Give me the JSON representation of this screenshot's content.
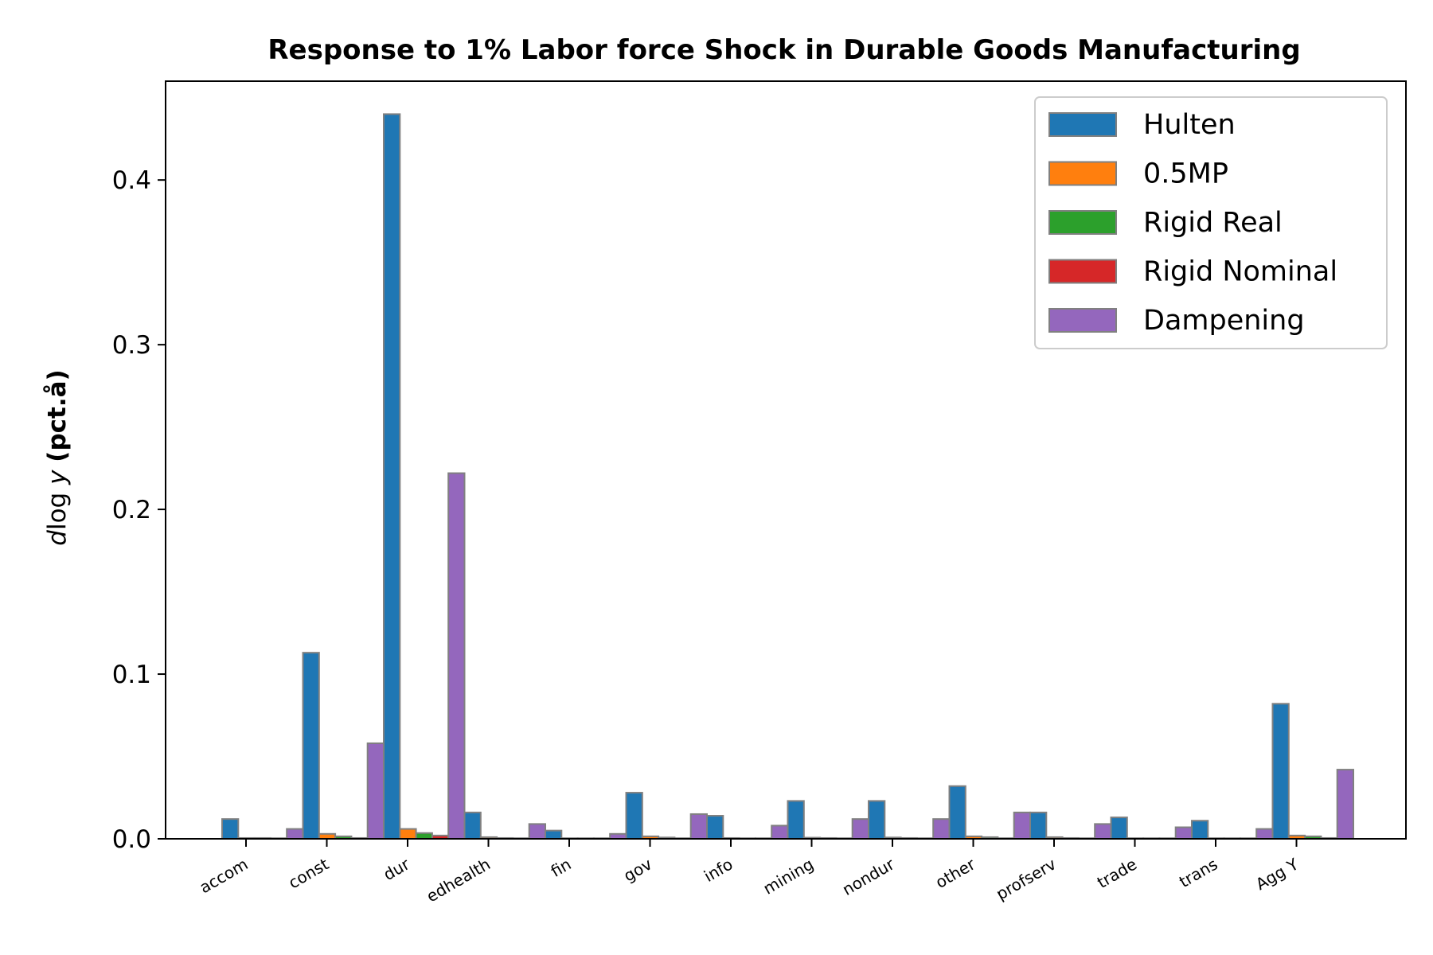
{
  "chart_data": {
    "type": "bar",
    "title": "Response to 1% Labor force Shock in Durable Goods Manufacturing",
    "ylabel_math": "d log y",
    "ylabel_bold": "(pct.å)",
    "xlabel": "",
    "ylim": [
      0,
      0.46
    ],
    "yticks": [
      0.0,
      0.1,
      0.2,
      0.3,
      0.4
    ],
    "ytick_labels": [
      "0.0",
      "0.1",
      "0.2",
      "0.3",
      "0.4"
    ],
    "legend_position": "top-right",
    "grid": false,
    "categories": [
      "accom",
      "const",
      "dur",
      "edhealth",
      "fin",
      "gov",
      "info",
      "mining",
      "nondur",
      "other",
      "profserv",
      "trade",
      "trans",
      "Agg Y"
    ],
    "series": [
      {
        "name": "Hulten",
        "color": "#1f77b4",
        "values": [
          0.012,
          0.113,
          0.44,
          0.016,
          0.005,
          0.028,
          0.014,
          0.023,
          0.023,
          0.032,
          0.016,
          0.013,
          0.011,
          0.082
        ]
      },
      {
        "name": "0.5MP",
        "color": "#ff7f0e",
        "values": [
          0.0005,
          0.003,
          0.006,
          0.001,
          0.0003,
          0.0015,
          0.0005,
          0.0007,
          0.0008,
          0.0015,
          0.001,
          0.0004,
          0.0004,
          0.002
        ]
      },
      {
        "name": "Rigid Real",
        "color": "#2ca02c",
        "values": [
          0.0005,
          0.0015,
          0.0035,
          0.0005,
          0.0002,
          0.0008,
          0.0003,
          0.0005,
          0.0005,
          0.001,
          0.0005,
          0.0002,
          0.0002,
          0.0015
        ]
      },
      {
        "name": "Rigid Nominal",
        "color": "#d62728",
        "values": [
          0.0002,
          0.0005,
          0.002,
          0.0003,
          0.0001,
          0.0003,
          0.0001,
          0.0002,
          0.0002,
          0.0004,
          0.0002,
          0.0001,
          0.0001,
          0.0005
        ]
      },
      {
        "name": "Dampening",
        "color": "#9467bd",
        "values": [
          0.006,
          0.058,
          0.222,
          0.009,
          0.003,
          0.015,
          0.008,
          0.012,
          0.012,
          0.016,
          0.009,
          0.007,
          0.006,
          0.042
        ]
      }
    ]
  }
}
